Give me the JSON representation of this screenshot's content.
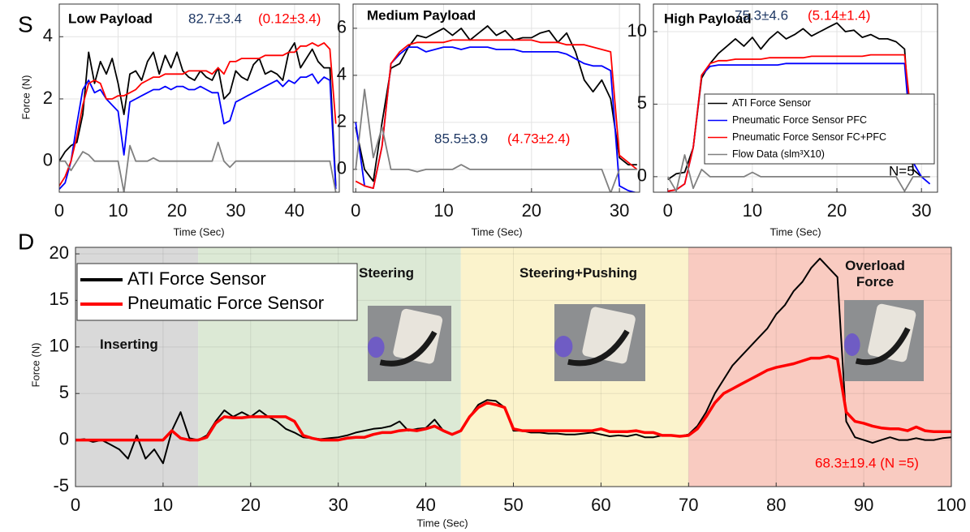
{
  "chart_data": [
    {
      "type": "line",
      "panel_label": "S",
      "title": "Low Payload",
      "ylabel": "Force (N)",
      "xlabel": "Time (Sec)",
      "annotations": [
        {
          "text": "82.7±3.4",
          "color": "#1f3864"
        },
        {
          "text": "(0.12±3.4)",
          "color": "#ff0000"
        }
      ],
      "xlim": [
        0,
        47.6
      ],
      "xticks": [
        0,
        10,
        20,
        30,
        40
      ],
      "ylim": [
        -1,
        5.05
      ],
      "yticks": [
        0,
        2,
        4
      ],
      "grid": true,
      "x": [
        0,
        1,
        2,
        3,
        4,
        5,
        6,
        7,
        8,
        9,
        10,
        11,
        12,
        13,
        14,
        15,
        16,
        17,
        18,
        19,
        20,
        21,
        22,
        23,
        24,
        25,
        26,
        27,
        28,
        29,
        30,
        31,
        32,
        33,
        34,
        35,
        36,
        37,
        38,
        39,
        40,
        41,
        42,
        43,
        44,
        45,
        46,
        47
      ],
      "series": [
        {
          "color": "#000000",
          "values": [
            0,
            0.3,
            0.5,
            0.6,
            1.5,
            3.5,
            2.5,
            3.2,
            2.8,
            3.3,
            2.5,
            1.5,
            2.8,
            2.9,
            2.6,
            3.2,
            3.5,
            2.8,
            3.4,
            3.0,
            3.5,
            2.9,
            2.7,
            2.6,
            2.9,
            2.7,
            2.6,
            3.0,
            2.0,
            2.2,
            2.9,
            2.7,
            2.6,
            3.1,
            3.3,
            2.8,
            2.9,
            2.8,
            2.6,
            3.5,
            3.8,
            3.0,
            3.3,
            3.6,
            3.2,
            3.0,
            3.0,
            -0.8
          ]
        },
        {
          "color": "#0000ff",
          "values": [
            -0.9,
            -0.7,
            0,
            1.2,
            2.3,
            2.6,
            2.2,
            2.3,
            2.0,
            1.8,
            1.6,
            0.2,
            1.9,
            2.0,
            2.1,
            2.2,
            2.3,
            2.3,
            2.4,
            2.3,
            2.4,
            2.4,
            2.3,
            2.3,
            2.4,
            2.3,
            2.2,
            2.2,
            1.2,
            1.3,
            1.9,
            2.0,
            2.1,
            2.2,
            2.3,
            2.4,
            2.5,
            2.6,
            2.4,
            2.6,
            2.5,
            2.7,
            2.7,
            2.8,
            2.5,
            2.7,
            2.6,
            -0.9
          ]
        },
        {
          "color": "#ff0000",
          "values": [
            -0.8,
            -0.5,
            0,
            0.8,
            1.8,
            2.5,
            2.6,
            2.5,
            2.0,
            2.0,
            2.1,
            2.1,
            2.2,
            2.3,
            2.5,
            2.6,
            2.7,
            2.7,
            2.8,
            2.8,
            2.8,
            2.8,
            2.9,
            2.9,
            2.9,
            2.9,
            2.8,
            3.0,
            2.8,
            3.2,
            3.2,
            3.3,
            3.3,
            3.3,
            3.3,
            3.4,
            3.4,
            3.4,
            3.4,
            3.5,
            3.5,
            3.7,
            3.7,
            3.8,
            3.7,
            3.8,
            3.6,
            1.2
          ]
        },
        {
          "color": "#808080",
          "values": [
            0,
            0,
            -0.3,
            0,
            0.3,
            0.2,
            0,
            0,
            0,
            0,
            0,
            -1,
            0.5,
            0,
            0,
            0,
            0.1,
            0,
            0,
            0,
            0,
            0,
            0,
            0,
            0,
            0,
            0,
            0.6,
            0,
            -0.2,
            0,
            0,
            0,
            0,
            0,
            0,
            0,
            0,
            0,
            0,
            0,
            0,
            0,
            0,
            0,
            0,
            0,
            -1
          ]
        }
      ]
    },
    {
      "type": "line",
      "title": "Medium Payload",
      "xlabel": "Time (Sec)",
      "annotations": [
        {
          "text": "85.5±3.9",
          "color": "#1f3864"
        },
        {
          "text": "(4.73±2.4)",
          "color": "#ff0000"
        }
      ],
      "xlim": [
        -0.3,
        32.3
      ],
      "xticks": [
        0,
        10,
        20,
        30
      ],
      "ylim": [
        -0.97,
        7.03
      ],
      "yticks": [
        0,
        2,
        4,
        6
      ],
      "grid": true,
      "x": [
        0,
        1,
        2,
        3,
        4,
        5,
        6,
        7,
        8,
        9,
        10,
        11,
        12,
        13,
        14,
        15,
        16,
        17,
        18,
        19,
        20,
        21,
        22,
        23,
        24,
        25,
        26,
        27,
        28,
        29,
        30,
        31,
        32
      ],
      "series": [
        {
          "color": "#000000",
          "values": [
            1.8,
            0,
            -0.5,
            2,
            4.3,
            4.5,
            5.2,
            5.7,
            5.6,
            5.8,
            6.0,
            5.7,
            6.0,
            5.5,
            5.8,
            6.1,
            5.7,
            5.9,
            5.5,
            5.6,
            5.6,
            5.8,
            5.9,
            5.4,
            5.8,
            5.0,
            3.8,
            3.3,
            3.8,
            3.0,
            0.5,
            0.2,
            0.2
          ]
        },
        {
          "color": "#0000ff",
          "values": [
            2,
            -0.7,
            -0.8,
            1,
            4.5,
            4.9,
            5.2,
            5.2,
            5.0,
            5.1,
            5.2,
            5.2,
            5.1,
            5.2,
            5.2,
            5.2,
            5.1,
            5.1,
            5.1,
            5.0,
            5.0,
            5.0,
            5.0,
            5.0,
            4.9,
            4.7,
            4.5,
            4.4,
            4.4,
            4.2,
            -0.7,
            -0.9,
            -1
          ]
        },
        {
          "color": "#ff0000",
          "values": [
            -0.5,
            -0.7,
            -0.8,
            1,
            4.5,
            5.0,
            5.3,
            5.4,
            5.4,
            5.4,
            5.4,
            5.5,
            5.5,
            5.5,
            5.5,
            5.5,
            5.5,
            5.5,
            5.5,
            5.5,
            5.5,
            5.4,
            5.4,
            5.4,
            5.3,
            5.3,
            5.3,
            5.2,
            5.1,
            5.0,
            0.6,
            0.3,
            0
          ]
        },
        {
          "color": "#808080",
          "values": [
            0,
            3.4,
            0.5,
            1.8,
            0,
            0,
            0,
            -0.1,
            0,
            0,
            0,
            0,
            0.2,
            0,
            0,
            0,
            0,
            0,
            0,
            0,
            0,
            0,
            0,
            0,
            0,
            0,
            0,
            0,
            0,
            -1,
            0,
            0,
            0
          ]
        }
      ]
    },
    {
      "type": "line",
      "title": "High Payload",
      "xlabel": "Time (Sec)",
      "annotations": [
        {
          "text": "75.3±4.6",
          "color": "#1f3864"
        },
        {
          "text": "(5.14±1.4)",
          "color": "#ff0000"
        },
        {
          "text": "N=5",
          "color": "#000000"
        }
      ],
      "xlim": [
        -1.7,
        31.9
      ],
      "xticks": [
        0,
        10,
        20,
        30
      ],
      "ylim": [
        -1.07,
        11.9
      ],
      "yticks": [
        0,
        5,
        10
      ],
      "grid": true,
      "legend": "center right",
      "x": [
        0,
        1,
        2,
        3,
        4,
        5,
        6,
        7,
        8,
        9,
        10,
        11,
        12,
        13,
        14,
        15,
        16,
        17,
        18,
        19,
        20,
        21,
        22,
        23,
        24,
        25,
        26,
        27,
        28,
        29,
        30,
        31
      ],
      "series": [
        {
          "name": "ATI Force Sensor",
          "color": "#000000",
          "values": [
            -0.2,
            0.2,
            0.3,
            2,
            6.8,
            7.8,
            8.5,
            9.0,
            9.5,
            9.0,
            9.6,
            8.8,
            9.5,
            10.0,
            9.5,
            9.8,
            10.2,
            9.7,
            10.0,
            10.3,
            10.6,
            10.0,
            10.1,
            9.6,
            9.8,
            9.5,
            9.5,
            9.3,
            8.8,
            0.5,
            0,
            0
          ]
        },
        {
          "name": "Pneumatic Force Sensor PFC",
          "color": "#0000ff",
          "values": [
            -1,
            -0.9,
            -0.5,
            2,
            7,
            7.6,
            7.7,
            7.7,
            7.7,
            7.7,
            7.7,
            7.7,
            7.7,
            7.7,
            7.8,
            7.8,
            7.8,
            7.8,
            7.8,
            7.8,
            7.8,
            7.8,
            7.8,
            7.8,
            7.8,
            7.8,
            7.8,
            7.8,
            7.8,
            1.0,
            0,
            -0.5
          ]
        },
        {
          "name": "Pneumatic Force Sensor FC+PFC",
          "color": "#ff0000",
          "values": [
            -1,
            -0.9,
            -0.5,
            2,
            7,
            7.8,
            8.0,
            8.0,
            8.1,
            8.1,
            8.1,
            8.1,
            8.2,
            8.2,
            8.2,
            8.2,
            8.2,
            8.3,
            8.3,
            8.3,
            8.3,
            8.3,
            8.3,
            8.3,
            8.4,
            8.4,
            8.4,
            8.4,
            8.4,
            3.0,
            2.0,
            1.5
          ]
        },
        {
          "name": "Flow Data (slm³X10)",
          "color": "#808080",
          "values": [
            0,
            -1,
            1.5,
            -0.8,
            0.5,
            0,
            0,
            0,
            0,
            0,
            0.3,
            0,
            0,
            0,
            0,
            0,
            0,
            0,
            0,
            0,
            0,
            0,
            0,
            0,
            0,
            0,
            0,
            0,
            -1,
            0,
            0,
            0
          ]
        }
      ]
    },
    {
      "type": "line",
      "panel_label": "D",
      "ylabel": "Force (N)",
      "xlabel": "Time (Sec)",
      "annotations": [
        {
          "text": "68.3±19.4 (N =5)",
          "color": "#ff0000"
        }
      ],
      "xlim": [
        0,
        100
      ],
      "xticks": [
        0,
        10,
        20,
        30,
        40,
        50,
        60,
        70,
        80,
        90,
        100
      ],
      "ylim": [
        -5,
        20.7
      ],
      "yticks": [
        -5,
        0,
        5,
        10,
        15,
        20
      ],
      "grid": true,
      "legend": "upper left",
      "regions": [
        {
          "label": "Inserting",
          "start": 0,
          "end": 14,
          "color": "#d9d9d9"
        },
        {
          "label": "Steering",
          "start": 14,
          "end": 44,
          "color": "#dce9d5"
        },
        {
          "label": "Steering+Pushing",
          "start": 44,
          "end": 70,
          "color": "#fbf3cc"
        },
        {
          "label": "Overload Force",
          "start": 70,
          "end": 100,
          "color": "#f9cbc1"
        }
      ],
      "x": [
        0,
        1,
        2,
        3,
        4,
        5,
        6,
        7,
        8,
        9,
        10,
        11,
        12,
        13,
        14,
        15,
        16,
        17,
        18,
        19,
        20,
        21,
        22,
        23,
        24,
        25,
        26,
        27,
        28,
        29,
        30,
        31,
        32,
        33,
        34,
        35,
        36,
        37,
        38,
        39,
        40,
        41,
        42,
        43,
        44,
        45,
        46,
        47,
        48,
        49,
        50,
        51,
        52,
        53,
        54,
        55,
        56,
        57,
        58,
        59,
        60,
        61,
        62,
        63,
        64,
        65,
        66,
        67,
        68,
        69,
        70,
        71,
        72,
        73,
        74,
        75,
        76,
        77,
        78,
        79,
        80,
        81,
        82,
        83,
        84,
        85,
        86,
        87,
        88,
        89,
        90,
        91,
        92,
        93,
        94,
        95,
        96,
        97,
        98,
        99,
        100
      ],
      "series": [
        {
          "name": "ATI Force Sensor",
          "color": "#000000",
          "values": [
            0,
            0.1,
            -0.2,
            0,
            -0.5,
            -1,
            -2,
            0.5,
            -2,
            -1,
            -2.5,
            1,
            3,
            0.2,
            0,
            0.5,
            2,
            3.2,
            2.5,
            3,
            2.5,
            3.2,
            2.5,
            2.0,
            1.2,
            0.8,
            0.3,
            0.2,
            0.1,
            0.2,
            0.3,
            0.5,
            0.8,
            1,
            1.2,
            1.3,
            1.5,
            2.0,
            1.0,
            1.2,
            1.3,
            2.2,
            1.0,
            0.6,
            1,
            2.5,
            3.8,
            4.3,
            4.2,
            3.5,
            1.0,
            1,
            0.8,
            0.8,
            0.7,
            0.7,
            0.6,
            0.6,
            0.7,
            0.8,
            0.6,
            0.4,
            0.5,
            0.4,
            0.6,
            0.3,
            0.3,
            0.5,
            0.5,
            0.4,
            0.6,
            1.5,
            3,
            5,
            6.5,
            8,
            9,
            10,
            11,
            12,
            13.5,
            14.5,
            16,
            17,
            18.5,
            19.5,
            18.5,
            17.5,
            2,
            0.3,
            0,
            -0.3,
            0,
            0.3,
            0,
            0,
            0.2,
            0,
            0,
            0.2,
            0.3
          ]
        },
        {
          "name": "Pneumatic Force Sensor",
          "color": "#ff0000",
          "values": [
            0,
            0,
            0,
            0,
            0,
            0,
            0,
            0,
            0,
            0,
            0,
            1,
            0.2,
            0,
            0,
            0.3,
            1.8,
            2.5,
            2.4,
            2.4,
            2.5,
            2.5,
            2.5,
            2.5,
            2.5,
            2.0,
            0.5,
            0.2,
            0,
            0,
            0,
            0.2,
            0.3,
            0.3,
            0.6,
            0.8,
            0.8,
            1.0,
            1.1,
            1.0,
            1.2,
            1.5,
            1.0,
            0.6,
            1,
            2.5,
            3.5,
            4.0,
            3.8,
            3.5,
            1.2,
            1.0,
            1.0,
            1.0,
            1.0,
            1.0,
            1.0,
            1.0,
            1.0,
            1.0,
            1.2,
            0.9,
            0.9,
            0.9,
            1.0,
            0.8,
            0.8,
            0.5,
            0.5,
            0.4,
            0.5,
            1.2,
            2.5,
            4,
            5,
            5.5,
            6,
            6.5,
            7,
            7.5,
            7.8,
            8,
            8.2,
            8.5,
            8.8,
            8.8,
            9,
            8.7,
            3,
            2,
            1.8,
            1.5,
            1.3,
            1.2,
            1.2,
            1,
            1.4,
            1,
            0.9,
            0.9,
            0.9
          ]
        }
      ]
    }
  ]
}
